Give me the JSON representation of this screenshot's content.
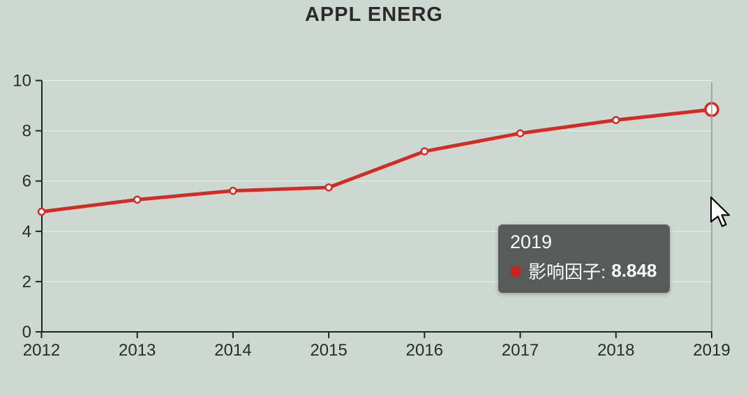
{
  "page": {
    "background_color": "#ccd8d1"
  },
  "chart_data": {
    "type": "line",
    "title": "APPL ENERG",
    "categories": [
      "2012",
      "2013",
      "2014",
      "2015",
      "2016",
      "2017",
      "2018",
      "2019"
    ],
    "series": [
      {
        "name": "影响因子",
        "color": "#d22c25",
        "values": [
          4.781,
          5.261,
          5.613,
          5.746,
          7.182,
          7.9,
          8.426,
          8.848
        ]
      }
    ],
    "xlabel": "",
    "ylabel": "",
    "ylim": [
      0,
      10
    ],
    "yticks": [
      0,
      2,
      4,
      6,
      8,
      10
    ],
    "yticklabels": [
      "0",
      "2",
      "4",
      "6",
      "8",
      "10"
    ],
    "grid": "faint horizontal gridlines",
    "legend_position": "none",
    "highlighted_index": 7,
    "axis_color": "#222222",
    "tick_label_color": "#2a2a2a",
    "gridline_color": "rgba(255,255,255,0.55)",
    "crosshair_color": "#8f9894",
    "marker_fill": "#ffffff"
  },
  "tooltip": {
    "year": "2019",
    "series_label": "影响因子:",
    "value": "8.848",
    "background_color": "rgba(80,85,83,0.95)",
    "dot_color": "#c9231f"
  },
  "title_color": "#2b2b2b"
}
